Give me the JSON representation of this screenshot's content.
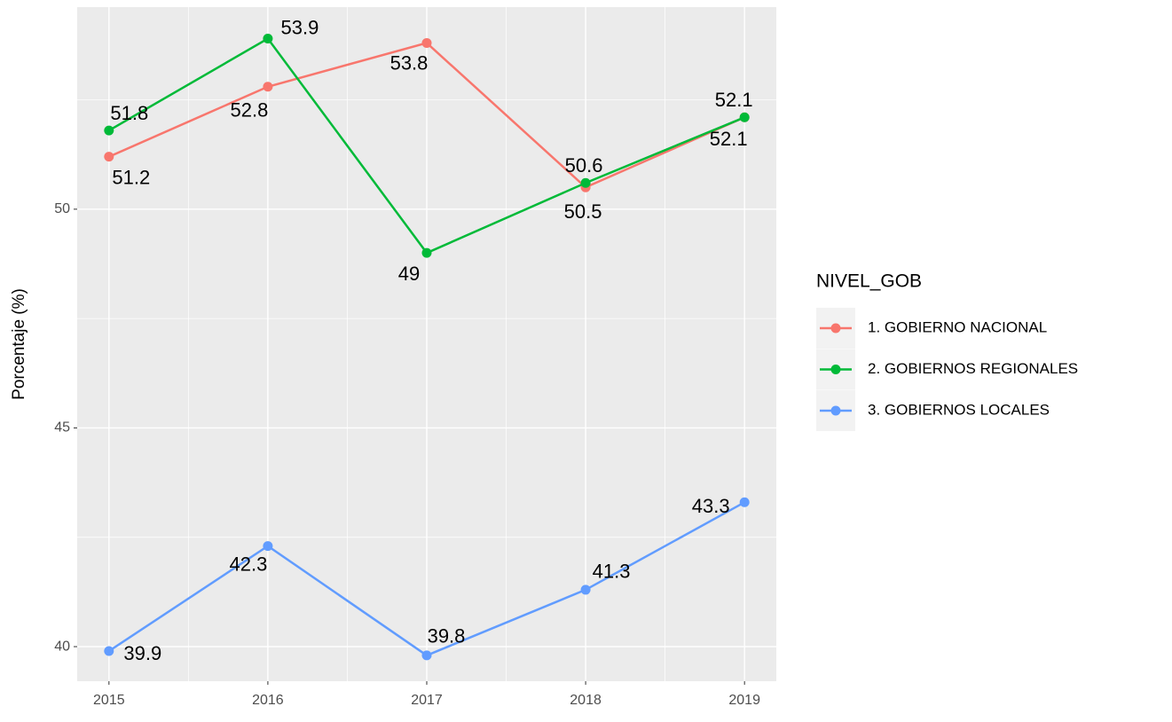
{
  "chart_data": {
    "type": "line",
    "y_label": "Porcentaje (%)",
    "legend_title": "NIVEL_GOB",
    "x": [
      2015,
      2016,
      2017,
      2018,
      2019
    ],
    "xlim": [
      2014.8,
      2019.2
    ],
    "xticks": [
      2015,
      2016,
      2017,
      2018,
      2019
    ],
    "ylim": [
      39.21,
      54.62
    ],
    "yticks": [
      40,
      45,
      50
    ],
    "grid": true,
    "legend": "right",
    "series": [
      {
        "name": "1. GOBIERNO NACIONAL",
        "color": "#F8766D",
        "values": [
          51.2,
          52.8,
          53.8,
          50.5,
          52.1
        ]
      },
      {
        "name": "2. GOBIERNOS REGIONALES",
        "color": "#00BA38",
        "values": [
          51.8,
          53.9,
          49,
          50.6,
          52.1
        ]
      },
      {
        "name": "3. GOBIERNOS LOCALES",
        "color": "#619CFF",
        "values": [
          39.9,
          42.3,
          39.8,
          41.3,
          43.3
        ]
      }
    ]
  }
}
